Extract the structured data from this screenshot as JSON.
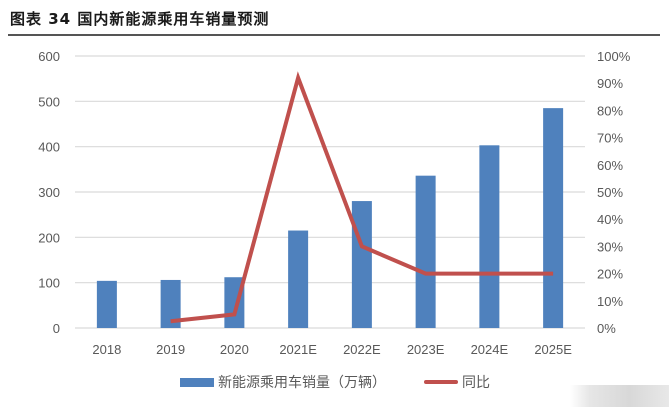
{
  "title": "图表 34  国内新能源乘用车销量预测",
  "chart_data": {
    "type": "bar+line",
    "title": "图表 34 国内新能源乘用车销量预测",
    "categories": [
      "2018",
      "2019",
      "2020",
      "2021E",
      "2022E",
      "2023E",
      "2024E",
      "2025E"
    ],
    "series": [
      {
        "name": "新能源乘用车销量（万辆）",
        "type": "bar",
        "axis": "left",
        "color": "#4f81bd",
        "values": [
          104,
          106,
          112,
          215,
          280,
          336,
          403,
          485
        ]
      },
      {
        "name": "同比",
        "type": "line",
        "axis": "right",
        "color": "#c0504d",
        "values": [
          null,
          0.025,
          0.05,
          0.92,
          0.3,
          0.2,
          0.2,
          0.2
        ]
      }
    ],
    "left_axis": {
      "ylim": [
        0,
        600
      ],
      "ticks": [
        "0",
        "100",
        "200",
        "300",
        "400",
        "500",
        "600"
      ]
    },
    "right_axis": {
      "ylim": [
        0,
        1
      ],
      "ticks": [
        "0%",
        "10%",
        "20%",
        "30%",
        "40%",
        "50%",
        "60%",
        "70%",
        "80%",
        "90%",
        "100%"
      ]
    },
    "xlabel": "",
    "ylabel": "",
    "grid": true,
    "legend_position": "bottom"
  },
  "legend": {
    "bar_label": "新能源乘用车销量（万辆）",
    "line_label": "同比"
  }
}
